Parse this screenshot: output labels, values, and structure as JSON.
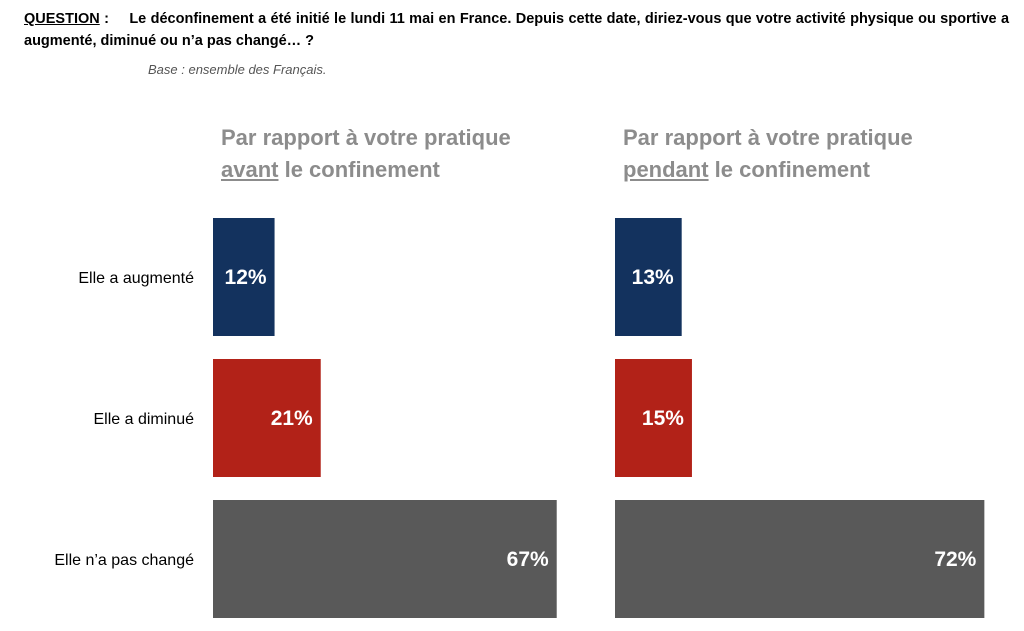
{
  "question": {
    "label": "QUESTION",
    "separator": ":",
    "text": "Le déconfinement a été initié le lundi 11 mai en France. Depuis cette date, diriez-vous que votre activité physique ou sportive a augmenté, diminué ou n’a pas changé… ?"
  },
  "base": "Base : ensemble des Français.",
  "panels": [
    {
      "line1": "Par rapport à votre pratique",
      "emph": "avant",
      "rest": " le confinement"
    },
    {
      "line1": "Par rapport à votre pratique",
      "emph": "pendant",
      "rest": " le confinement"
    }
  ],
  "colors": {
    "augmente": "#13325e",
    "diminue": "#b22218",
    "inchange": "#595959"
  },
  "chart_data": [
    {
      "type": "bar",
      "orientation": "horizontal",
      "title": "Par rapport à votre pratique avant le confinement",
      "categories": [
        "Elle a augmenté",
        "Elle a diminué",
        "Elle n’a pas changé"
      ],
      "values": [
        12,
        21,
        67
      ],
      "data_labels": [
        "12%",
        "21%",
        "67%"
      ],
      "xlim": [
        0,
        100
      ],
      "grid": false
    },
    {
      "type": "bar",
      "orientation": "horizontal",
      "title": "Par rapport à votre pratique pendant le confinement",
      "categories": [
        "Elle a augmenté",
        "Elle a diminué",
        "Elle n’a pas changé"
      ],
      "values": [
        13,
        15,
        72
      ],
      "data_labels": [
        "13%",
        "15%",
        "72%"
      ],
      "xlim": [
        0,
        100
      ],
      "grid": false
    }
  ]
}
